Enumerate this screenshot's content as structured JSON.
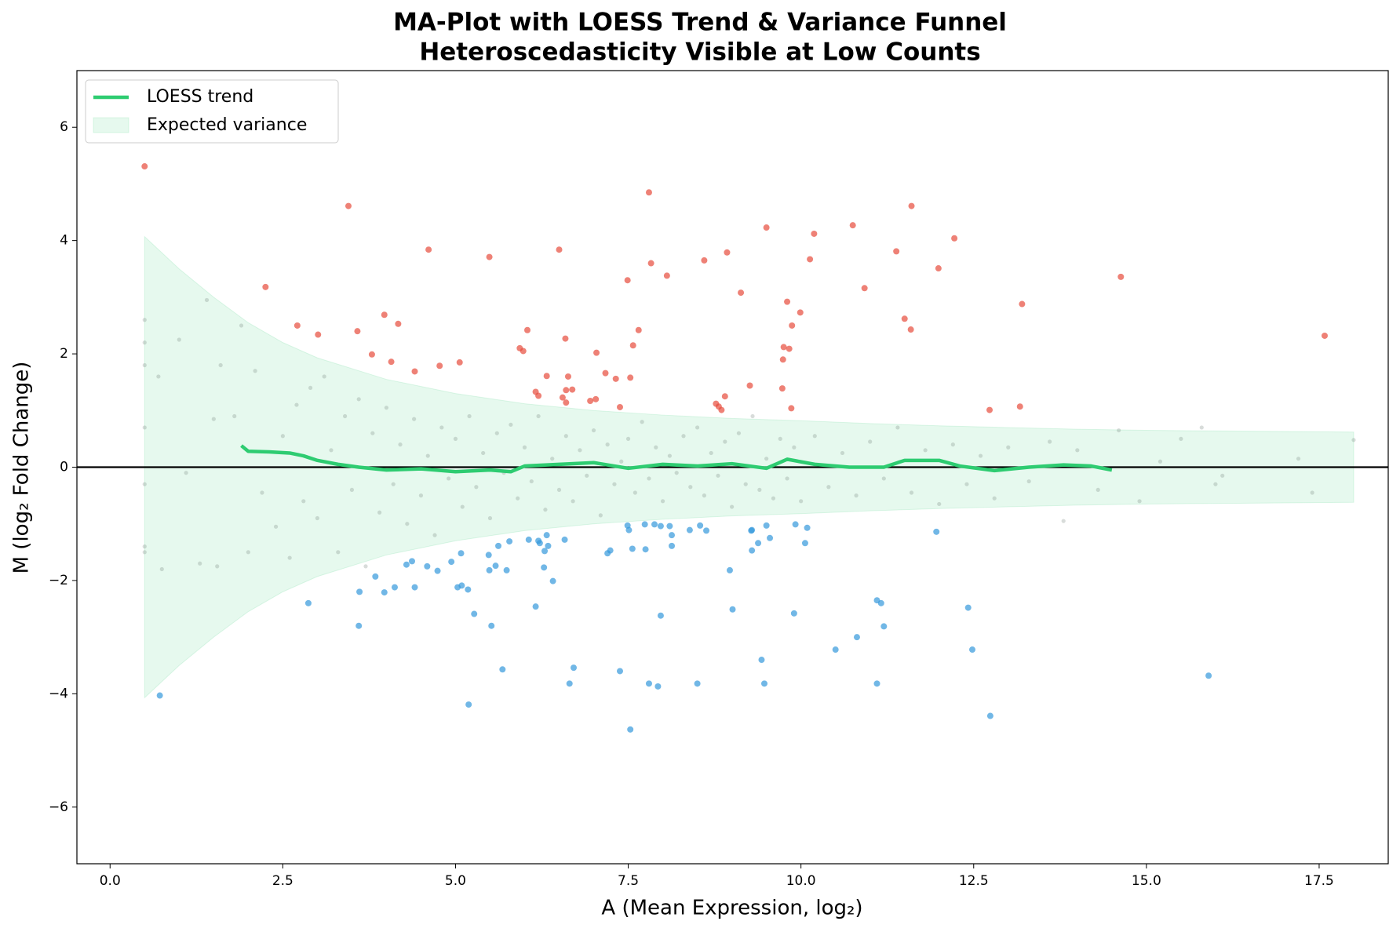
{
  "chart_data": {
    "type": "scatter",
    "title": "MA-Plot with LOESS Trend & Variance Funnel",
    "subtitle": "Heteroscedasticity Visible at Low Counts",
    "xlabel": "A (Mean Expression, log₂)",
    "ylabel": "M (log₂ Fold Change)",
    "xlim": [
      -0.48,
      18.5
    ],
    "ylim": [
      -7,
      7
    ],
    "xticks": [
      {
        "value": 0,
        "label": "0.0"
      },
      2.5,
      {
        "value": 5,
        "label": "5.0"
      },
      7.5,
      {
        "value": 10,
        "label": "10.0"
      },
      12.5,
      {
        "value": 15,
        "label": "15.0"
      },
      17.5
    ],
    "yticks": [
      {
        "value": -6,
        "label": "−6"
      },
      {
        "value": -4,
        "label": "−4"
      },
      {
        "value": -2,
        "label": "−2"
      },
      0,
      2,
      4,
      6
    ],
    "grid": false,
    "legend": "upper left",
    "hline": 0,
    "band": {
      "name": "Expected variance",
      "color": "#2ecc71",
      "x": [
        0.5,
        1,
        1.5,
        2,
        2.5,
        3,
        4,
        5,
        6,
        7,
        8,
        9,
        10,
        11,
        12,
        13,
        14,
        15,
        16,
        17,
        18
      ],
      "upper": [
        4.07,
        3.5,
        3.0,
        2.55,
        2.2,
        1.93,
        1.55,
        1.3,
        1.12,
        1.0,
        0.92,
        0.86,
        0.82,
        0.77,
        0.73,
        0.7,
        0.67,
        0.65,
        0.64,
        0.63,
        0.62
      ],
      "lower": [
        -4.07,
        -3.5,
        -3.0,
        -2.55,
        -2.2,
        -1.93,
        -1.55,
        -1.3,
        -1.12,
        -1.0,
        -0.92,
        -0.86,
        -0.82,
        -0.77,
        -0.73,
        -0.7,
        -0.67,
        -0.65,
        -0.64,
        -0.63,
        -0.62
      ]
    },
    "trend": {
      "name": "LOESS trend",
      "color": "#2ecc71",
      "x": [
        1.9,
        2.0,
        2.3,
        2.6,
        2.8,
        3.0,
        3.3,
        3.6,
        4.0,
        4.5,
        5.0,
        5.5,
        5.8,
        6.0,
        6.5,
        7.0,
        7.5,
        8.0,
        8.5,
        9.0,
        9.5,
        9.8,
        10.2,
        10.7,
        11.2,
        11.5,
        12.0,
        12.3,
        12.8,
        13.3,
        13.8,
        14.2,
        14.5
      ],
      "values": [
        0.38,
        0.28,
        0.27,
        0.25,
        0.2,
        0.12,
        0.05,
        0.0,
        -0.05,
        -0.03,
        -0.08,
        -0.05,
        -0.08,
        0.02,
        0.05,
        0.08,
        -0.02,
        0.05,
        0.02,
        0.06,
        -0.02,
        0.14,
        0.05,
        0.0,
        0.0,
        0.12,
        0.12,
        0.02,
        -0.06,
        0.0,
        0.04,
        0.02,
        -0.05
      ]
    },
    "series": [
      {
        "color": "#7f8c84",
        "size": 2.6,
        "opacity": 0.3,
        "x": [
          0.5,
          0.5,
          0.5,
          0.5,
          0.5,
          0.5,
          0.5,
          0.7,
          0.75,
          1.0,
          1.1,
          1.3,
          1.4,
          1.5,
          1.55,
          1.6,
          1.8,
          1.9,
          2.0,
          2.1,
          2.2,
          2.4,
          2.5,
          2.6,
          2.7,
          2.8,
          2.9,
          3.0,
          3.1,
          3.2,
          3.3,
          3.4,
          3.5,
          3.6,
          3.7,
          3.8,
          3.9,
          4.0,
          4.1,
          4.2,
          4.3,
          4.4,
          4.5,
          4.6,
          4.7,
          4.8,
          4.9,
          5.0,
          5.1,
          5.2,
          5.3,
          5.4,
          5.5,
          5.6,
          5.7,
          5.8,
          5.9,
          6.0,
          6.1,
          6.2,
          6.3,
          6.4,
          6.5,
          6.6,
          6.7,
          6.8,
          6.9,
          7.0,
          7.1,
          7.2,
          7.3,
          7.4,
          7.5,
          7.6,
          7.7,
          7.8,
          7.9,
          8.0,
          8.1,
          8.2,
          8.3,
          8.4,
          8.5,
          8.6,
          8.7,
          8.8,
          8.9,
          9.0,
          9.1,
          9.2,
          9.3,
          9.4,
          9.5,
          9.6,
          9.7,
          9.8,
          9.9,
          10.0,
          10.2,
          10.4,
          10.6,
          10.8,
          11.0,
          11.2,
          11.4,
          11.6,
          11.8,
          12.0,
          12.2,
          12.4,
          12.6,
          12.8,
          13.0,
          13.3,
          13.6,
          13.8,
          14.0,
          14.3,
          14.6,
          14.9,
          15.2,
          15.5,
          15.8,
          16.0,
          16.1,
          17.2,
          17.4,
          18.0
        ],
        "values": [
          2.2,
          -1.4,
          0.7,
          -0.3,
          2.6,
          1.8,
          -1.5,
          1.6,
          -1.8,
          2.25,
          -0.1,
          -1.7,
          2.95,
          0.85,
          -1.75,
          1.8,
          0.9,
          2.5,
          -1.5,
          1.7,
          -0.45,
          -1.05,
          0.55,
          -1.6,
          1.1,
          -0.6,
          1.4,
          -0.9,
          1.6,
          0.3,
          -1.5,
          0.9,
          -0.4,
          1.2,
          -1.75,
          0.6,
          -0.8,
          1.05,
          -0.3,
          0.4,
          -1.0,
          0.85,
          -0.5,
          0.2,
          -1.2,
          0.7,
          -0.2,
          0.5,
          -0.7,
          0.9,
          -0.35,
          0.25,
          -0.9,
          0.6,
          -0.1,
          0.75,
          -0.55,
          0.35,
          -0.25,
          0.9,
          -0.75,
          0.15,
          -0.4,
          0.55,
          -0.6,
          0.3,
          -0.15,
          0.65,
          -0.85,
          0.4,
          -0.3,
          0.1,
          0.5,
          -0.45,
          0.8,
          -0.2,
          0.35,
          -0.6,
          0.2,
          -0.1,
          0.55,
          -0.35,
          0.7,
          -0.5,
          0.25,
          -0.15,
          0.45,
          -0.7,
          0.6,
          -0.3,
          0.9,
          -0.4,
          0.15,
          -0.55,
          0.5,
          -0.2,
          0.35,
          -0.6,
          0.55,
          -0.35,
          0.25,
          -0.5,
          0.45,
          -0.2,
          0.7,
          -0.45,
          0.3,
          -0.65,
          0.4,
          -0.3,
          0.2,
          -0.55,
          0.35,
          -0.25,
          0.45,
          -0.95,
          0.3,
          -0.4,
          0.65,
          -0.6,
          0.1,
          0.5,
          0.7,
          -0.3,
          -0.15,
          0.15,
          -0.45,
          0.48
        ]
      },
      {
        "color": "#e74c3c",
        "size": 4,
        "opacity": 0.7,
        "x": [
          0.5,
          2.25,
          2.71,
          3.01,
          3.45,
          3.58,
          3.79,
          3.97,
          4.07,
          4.17,
          4.41,
          4.61,
          4.77,
          5.06,
          5.49,
          5.93,
          5.98,
          6.04,
          6.16,
          6.2,
          6.32,
          6.5,
          6.55,
          6.59,
          6.6,
          6.63,
          6.6,
          6.69,
          6.95,
          7.03,
          7.04,
          7.17,
          7.32,
          7.38,
          7.49,
          7.53,
          7.57,
          7.65,
          7.8,
          7.83,
          8.06,
          8.6,
          8.77,
          8.81,
          8.85,
          8.9,
          8.93,
          9.13,
          9.26,
          9.5,
          9.73,
          9.74,
          9.75,
          9.8,
          9.83,
          9.86,
          9.87,
          9.99,
          10.13,
          10.19,
          10.75,
          10.92,
          11.38,
          11.5,
          11.59,
          11.6,
          11.99,
          12.22,
          12.73,
          13.17,
          13.2,
          14.63,
          17.58
        ],
        "values": [
          5.31,
          3.18,
          2.5,
          2.34,
          4.61,
          2.4,
          1.99,
          2.69,
          1.86,
          2.53,
          1.69,
          3.84,
          1.79,
          1.85,
          3.71,
          2.1,
          2.05,
          2.42,
          1.33,
          1.26,
          1.61,
          3.84,
          1.23,
          2.27,
          1.14,
          1.6,
          1.36,
          1.37,
          1.17,
          1.2,
          2.02,
          1.66,
          1.56,
          1.06,
          3.3,
          1.58,
          2.15,
          2.42,
          4.85,
          3.6,
          3.38,
          3.65,
          1.12,
          1.07,
          1.01,
          1.25,
          3.79,
          3.08,
          1.44,
          4.23,
          1.39,
          1.9,
          2.12,
          2.92,
          2.09,
          1.04,
          2.5,
          2.73,
          3.67,
          4.12,
          4.27,
          3.16,
          3.81,
          2.62,
          2.43,
          4.61,
          3.51,
          4.04,
          1.01,
          1.07,
          2.88,
          3.36,
          2.32
        ]
      },
      {
        "color": "#3498db",
        "size": 4,
        "opacity": 0.7,
        "x": [
          0.72,
          2.87,
          3.6,
          3.61,
          3.84,
          3.97,
          4.12,
          4.29,
          4.37,
          4.41,
          4.59,
          4.74,
          4.94,
          5.03,
          5.08,
          5.09,
          5.18,
          5.19,
          5.27,
          5.48,
          5.49,
          5.52,
          5.58,
          5.62,
          5.68,
          5.74,
          5.78,
          6.06,
          6.16,
          6.2,
          6.22,
          6.28,
          6.29,
          6.32,
          6.34,
          6.41,
          6.58,
          6.65,
          6.71,
          7.2,
          7.24,
          7.38,
          7.49,
          7.51,
          7.53,
          7.56,
          7.74,
          7.75,
          7.8,
          7.88,
          7.93,
          7.97,
          7.97,
          8.1,
          8.13,
          8.13,
          8.39,
          8.5,
          8.54,
          8.63,
          8.97,
          9.01,
          9.28,
          9.29,
          9.29,
          9.38,
          9.43,
          9.47,
          9.5,
          9.55,
          9.9,
          9.92,
          10.06,
          10.09,
          10.5,
          10.81,
          11.1,
          11.1,
          11.16,
          11.2,
          11.96,
          12.42,
          12.48,
          12.74,
          15.9
        ],
        "values": [
          -4.03,
          -2.4,
          -2.8,
          -2.2,
          -1.93,
          -2.21,
          -2.12,
          -1.72,
          -1.66,
          -2.12,
          -1.75,
          -1.83,
          -1.67,
          -2.12,
          -1.52,
          -2.09,
          -2.16,
          -4.19,
          -2.59,
          -1.55,
          -1.82,
          -2.8,
          -1.74,
          -1.39,
          -3.57,
          -1.82,
          -1.31,
          -1.28,
          -2.46,
          -1.3,
          -1.34,
          -1.77,
          -1.48,
          -1.2,
          -1.39,
          -2.01,
          -1.28,
          -3.82,
          -3.54,
          -1.52,
          -1.47,
          -3.6,
          -1.03,
          -1.11,
          -4.63,
          -1.44,
          -1.01,
          -1.45,
          -3.82,
          -1.01,
          -3.87,
          -1.04,
          -2.62,
          -1.04,
          -1.2,
          -1.39,
          -1.11,
          -3.82,
          -1.03,
          -1.12,
          -1.82,
          -2.51,
          -1.12,
          -1.47,
          -1.11,
          -1.34,
          -3.4,
          -3.82,
          -1.03,
          -1.25,
          -2.58,
          -1.01,
          -1.34,
          -1.07,
          -3.22,
          -3.0,
          -2.35,
          -3.82,
          -2.4,
          -2.81,
          -1.14,
          -2.48,
          -3.22,
          -4.39,
          -3.68
        ]
      }
    ]
  }
}
